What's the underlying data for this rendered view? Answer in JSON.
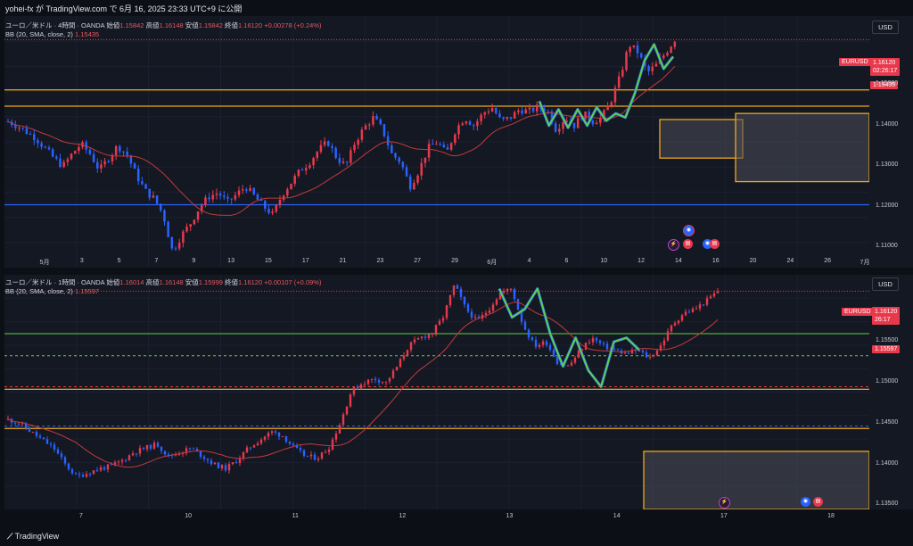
{
  "header": {
    "text": "yohei-fx が TradingView.com で 6月 16, 2025 23:33 UTC+9 に公開"
  },
  "footer": {
    "logo": "TradingView"
  },
  "colors": {
    "bg": "#141823",
    "up": "#e8394c",
    "down": "#2962ff",
    "bb_mid": "#c23a3a",
    "forecast": "#5fcf45",
    "zone": "#f0a818"
  },
  "panes": [
    {
      "info_line1": "ユーロ／米ドル · 4時間 · OANDA",
      "o_label": "始値",
      "o": "1.15842",
      "h_label": "高値",
      "h": "1.16148",
      "l_label": "安値",
      "l": "1.15842",
      "c_label": "終値",
      "c": "1.16120",
      "chg": "+0.00278 (+0.24%)",
      "info_line2": "BB (20, SMA, close, 2)",
      "bb_val": "1.15435",
      "currency": "USD",
      "price_tag": "1.16120",
      "price_tag_symbol": "EURUSD",
      "countdown": "02:26:17",
      "bb_tag": "1.15435",
      "yticks": [
        "1.15000",
        "1.14000",
        "1.13000",
        "1.12000",
        "1.11000"
      ],
      "xticks": [
        "5月",
        "3",
        "5",
        "7",
        "9",
        "13",
        "15",
        "17",
        "21",
        "23",
        "27",
        "29",
        "6月",
        "4",
        "6",
        "10",
        "12",
        "14",
        "16",
        "20",
        "24",
        "26",
        "7月"
      ]
    },
    {
      "info_line1": "ユーロ／米ドル · 1時間 · OANDA",
      "o_label": "始値",
      "o": "1.16014",
      "h_label": "高値",
      "h": "1.16148",
      "l_label": "安値",
      "l": "1.15999",
      "c_label": "終値",
      "c": "1.16120",
      "chg": "+0.00107 (+0.09%)",
      "info_line2": "BB (20, SMA, close, 2)",
      "bb_val": "1.15597",
      "currency": "USD",
      "price_tag": "1.16120",
      "price_tag_symbol": "EURUSD",
      "countdown": "26:17",
      "bb_tag": "1.15597",
      "yticks": [
        "1.15500",
        "1.15000",
        "1.14500",
        "1.14000",
        "1.13500"
      ],
      "xticks": [
        "7",
        "10",
        "11",
        "12",
        "13",
        "14",
        "17",
        "18"
      ]
    }
  ],
  "chart_data": [
    {
      "type": "candlestick",
      "title": "ユーロ／米ドル · 4時間 · OANDA",
      "ylim": [
        1.105,
        1.167
      ],
      "close_path": [
        1.141,
        1.14,
        1.1385,
        1.137,
        1.1345,
        1.132,
        1.13,
        1.133,
        1.1355,
        1.133,
        1.129,
        1.132,
        1.135,
        1.133,
        1.128,
        1.124,
        1.122,
        1.118,
        1.109,
        1.113,
        1.116,
        1.12,
        1.1225,
        1.1235,
        1.121,
        1.123,
        1.125,
        1.1225,
        1.12,
        1.118,
        1.123,
        1.126,
        1.129,
        1.131,
        1.134,
        1.136,
        1.132,
        1.13,
        1.136,
        1.1395,
        1.142,
        1.139,
        1.133,
        1.131,
        1.125,
        1.129,
        1.1345,
        1.136,
        1.133,
        1.139,
        1.142,
        1.14,
        1.143,
        1.1445,
        1.141,
        1.142,
        1.144,
        1.1435,
        1.1445,
        1.144,
        1.139,
        1.142,
        1.14,
        1.143,
        1.141,
        1.142,
        1.146,
        1.152,
        1.16,
        1.158,
        1.153,
        1.155,
        1.158,
        1.1612
      ],
      "forecast_path": [
        1.146,
        1.14,
        1.144,
        1.1395,
        1.144,
        1.14,
        1.1445,
        1.1412,
        1.143,
        1.142,
        1.148,
        1.156,
        1.16,
        1.154,
        1.157
      ],
      "levels": {
        "red_dotted": 1.1612,
        "orange_lines": [
          1.1488,
          1.1448
        ],
        "blue_line": 1.1205
      },
      "zones": [
        {
          "y_top": 1.1415,
          "y_bottom": 1.132
        },
        {
          "y_top": 1.143,
          "y_bottom": 1.1262
        }
      ]
    },
    {
      "type": "candlestick",
      "title": "ユーロ／米ドル · 1時間 · OANDA",
      "ylim": [
        1.1345,
        1.1632
      ],
      "close_path": [
        1.1455,
        1.145,
        1.144,
        1.143,
        1.142,
        1.14,
        1.1385,
        1.139,
        1.1395,
        1.1398,
        1.1405,
        1.1415,
        1.142,
        1.1425,
        1.141,
        1.1415,
        1.142,
        1.141,
        1.14,
        1.1395,
        1.1405,
        1.142,
        1.143,
        1.144,
        1.1435,
        1.142,
        1.141,
        1.1408,
        1.142,
        1.145,
        1.149,
        1.15,
        1.1505,
        1.15,
        1.152,
        1.1545,
        1.1555,
        1.156,
        1.158,
        1.162,
        1.159,
        1.1575,
        1.159,
        1.161,
        1.1615,
        1.157,
        1.1545,
        1.155,
        1.1525,
        1.152,
        1.154,
        1.1555,
        1.1545,
        1.154,
        1.1535,
        1.154,
        1.153,
        1.1545,
        1.157,
        1.1585,
        1.159,
        1.16,
        1.1612
      ],
      "forecast_path": [
        1.1615,
        1.158,
        1.159,
        1.1615,
        1.156,
        1.152,
        1.1555,
        1.1515,
        1.1495,
        1.155,
        1.1555,
        1.154
      ],
      "levels": {
        "red_dotted": 1.1612,
        "green_line": 1.156,
        "green_dashed": 1.1533,
        "yellow_line": 1.1492,
        "red_dashed": 1.1495,
        "orange_line": 1.1444,
        "blue_dashed": 1.1447
      },
      "zones": [
        {
          "y_top": 1.1416,
          "y_bottom": 1.1345
        }
      ]
    }
  ]
}
